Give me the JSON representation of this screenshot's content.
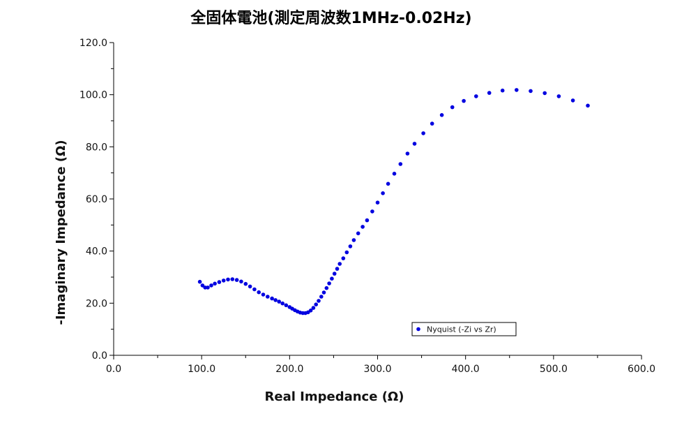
{
  "chart_data": {
    "type": "scatter",
    "title": "全固体電池(測定周波数1MHz-0.02Hz)",
    "xlabel": "Real Impedance (Ω)",
    "ylabel": "-Imaginary Impedance (Ω)",
    "xlim": [
      0,
      600
    ],
    "ylim": [
      0,
      120
    ],
    "x_ticks": [
      "0.0",
      "100.0",
      "200.0",
      "300.0",
      "400.0",
      "500.0",
      "600.0"
    ],
    "y_ticks": [
      "0.0",
      "20.0",
      "40.0",
      "60.0",
      "80.0",
      "100.0",
      "120.0"
    ],
    "grid": false,
    "legend_position": "bottom-right",
    "marker_color": "#0000e0",
    "series": [
      {
        "name": "Nyquist (-Zi vs Zr)",
        "x": [
          98,
          101,
          104,
          107,
          111,
          115,
          120,
          125,
          130,
          135,
          140,
          145,
          150,
          155,
          160,
          165,
          170,
          175,
          180,
          184,
          188,
          192,
          196,
          200,
          203,
          206,
          209,
          212,
          215,
          218,
          221,
          224,
          227,
          230,
          233,
          236,
          239,
          242,
          245,
          248,
          251,
          254,
          257,
          261,
          265,
          269,
          273,
          278,
          283,
          288,
          294,
          300,
          306,
          312,
          319,
          326,
          334,
          342,
          352,
          362,
          373,
          385,
          398,
          412,
          427,
          442,
          458,
          474,
          490,
          506,
          522,
          539
        ],
        "y": [
          28.2,
          26.8,
          26.0,
          26.0,
          26.8,
          27.5,
          28.1,
          28.7,
          29.1,
          29.2,
          28.9,
          28.3,
          27.4,
          26.4,
          25.3,
          24.2,
          23.3,
          22.5,
          21.8,
          21.2,
          20.6,
          19.9,
          19.2,
          18.5,
          17.9,
          17.3,
          16.8,
          16.4,
          16.2,
          16.2,
          16.5,
          17.2,
          18.2,
          19.5,
          20.9,
          22.5,
          24.1,
          25.8,
          27.6,
          29.4,
          31.3,
          33.2,
          35.1,
          37.2,
          39.5,
          41.8,
          44.2,
          46.8,
          49.3,
          51.8,
          55.2,
          58.6,
          62.2,
          65.8,
          69.7,
          73.4,
          77.4,
          81.2,
          85.2,
          88.9,
          92.2,
          95.2,
          97.6,
          99.4,
          100.7,
          101.6,
          101.8,
          101.4,
          100.6,
          99.4,
          97.8,
          95.8
        ]
      }
    ]
  }
}
